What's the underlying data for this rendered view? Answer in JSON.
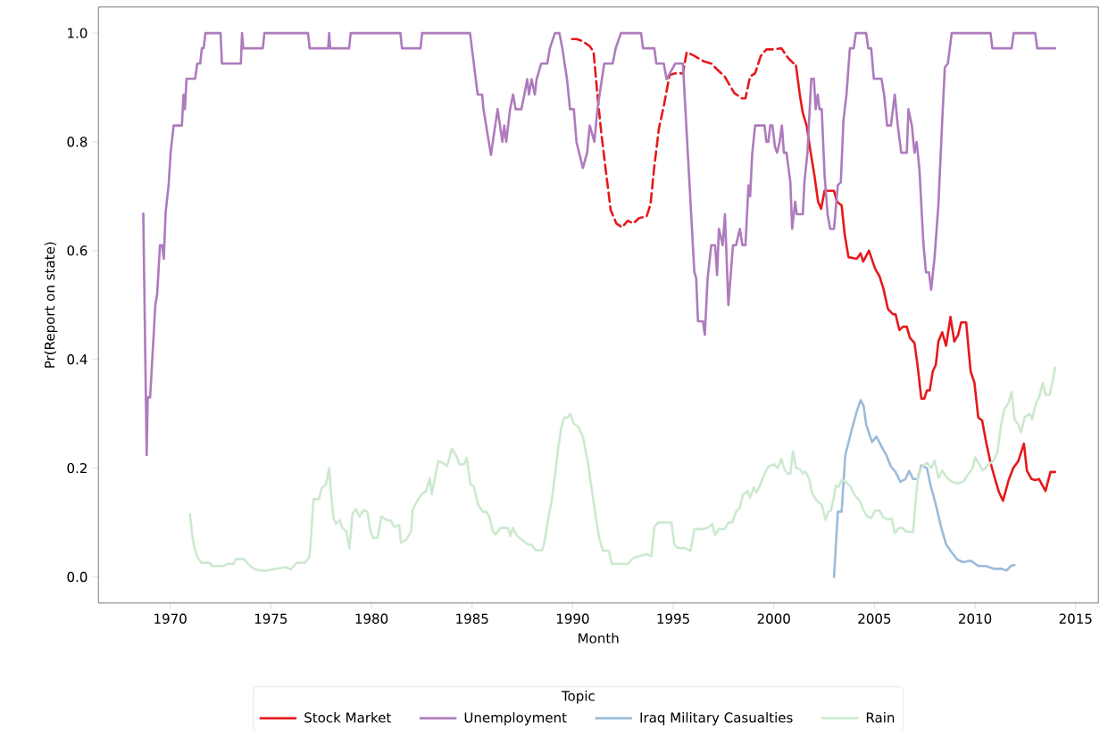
{
  "chart_data": {
    "type": "line",
    "xlabel": "Month",
    "ylabel": "Pr(Report on state)",
    "legend_title": "Topic",
    "legend": "bottom",
    "line_style": "solid",
    "xlim": [
      1966.43,
      2016.13
    ],
    "ylim": [
      -0.048,
      1.048
    ],
    "xticks": [
      1970,
      1975,
      1980,
      1985,
      1990,
      1995,
      2000,
      2005,
      2010,
      2015
    ],
    "yticks": [
      {
        "value": 0,
        "label": "0.0"
      },
      {
        "value": 0.2,
        "label": "0.2"
      },
      {
        "value": 0.4,
        "label": "0.4"
      },
      {
        "value": 0.6,
        "label": "0.6"
      },
      {
        "value": 0.8,
        "label": "0.8"
      },
      {
        "value": 1,
        "label": "1.0"
      }
    ],
    "series": [
      {
        "name": "Stock Market",
        "color": "#e41a1c",
        "x": [
          2001.1,
          2001.29,
          2001.44,
          2001.63,
          2001.82,
          2002.01,
          2002.2,
          2002.35,
          2002.52,
          2002.71,
          2002.99,
          2003.14,
          2003.37,
          2003.52,
          2003.71,
          2004.12,
          2004.31,
          2004.44,
          2004.73,
          2005.03,
          2005.25,
          2005.44,
          2005.67,
          2005.92,
          2006.05,
          2006.24,
          2006.42,
          2006.61,
          2006.76,
          2006.99,
          2007.14,
          2007.33,
          2007.48,
          2007.61,
          2007.75,
          2007.9,
          2008.05,
          2008.18,
          2008.37,
          2008.56,
          2008.78,
          2008.97,
          2009.16,
          2009.31,
          2009.56,
          2009.78,
          2009.97,
          2010.16,
          2010.35,
          2010.54,
          2010.77,
          2011.01,
          2011.2,
          2011.39,
          2011.67,
          2011.9,
          2012.15,
          2012.43,
          2012.58,
          2012.81,
          2012.99,
          2013.18,
          2013.5,
          2013.75,
          2013.98
        ],
        "values": [
          0.94,
          0.887,
          0.853,
          0.83,
          0.783,
          0.74,
          0.69,
          0.677,
          0.71,
          0.71,
          0.71,
          0.69,
          0.683,
          0.63,
          0.588,
          0.585,
          0.595,
          0.58,
          0.6,
          0.567,
          0.553,
          0.531,
          0.493,
          0.483,
          0.483,
          0.454,
          0.46,
          0.46,
          0.44,
          0.43,
          0.39,
          0.328,
          0.328,
          0.343,
          0.343,
          0.378,
          0.39,
          0.433,
          0.45,
          0.425,
          0.478,
          0.433,
          0.445,
          0.468,
          0.468,
          0.378,
          0.357,
          0.293,
          0.288,
          0.25,
          0.21,
          0.178,
          0.155,
          0.14,
          0.178,
          0.2,
          0.213,
          0.245,
          0.195,
          0.18,
          0.178,
          0.18,
          0.158,
          0.193,
          0.193
        ]
      },
      {
        "color": "#e41a1c",
        "line_style": "dashed",
        "x": [
          1989.97,
          1990.19,
          1990.5,
          1990.85,
          1991.04,
          1991.23,
          1991.42,
          1991.65,
          1991.89,
          1992.17,
          1992.46,
          1992.74,
          1993.02,
          1993.31,
          1993.68,
          1993.87,
          1994.06,
          1994.29,
          1994.53,
          1994.82,
          1995.1,
          1995.48,
          1995.67,
          1996.05,
          1996.52,
          1996.89,
          1997.27,
          1997.56,
          1998.03,
          1998.41,
          1998.59,
          1998.82,
          1999.07,
          1999.35,
          1999.63,
          1999.97,
          2000.38,
          2000.63,
          2000.82,
          2001.1
        ],
        "values": [
          0.989,
          0.989,
          0.985,
          0.976,
          0.966,
          0.887,
          0.818,
          0.747,
          0.675,
          0.65,
          0.643,
          0.655,
          0.65,
          0.66,
          0.663,
          0.685,
          0.755,
          0.825,
          0.866,
          0.923,
          0.926,
          0.926,
          0.965,
          0.958,
          0.948,
          0.944,
          0.93,
          0.92,
          0.89,
          0.88,
          0.88,
          0.92,
          0.926,
          0.958,
          0.97,
          0.97,
          0.972,
          0.958,
          0.95,
          0.94
        ]
      },
      {
        "name": "Unemployment",
        "color": "#ae7bbd",
        "x": [
          1968.66,
          1968.83,
          1968.88,
          1969.0,
          1969.26,
          1969.35,
          1969.49,
          1969.6,
          1969.68,
          1969.77,
          1969.92,
          1970.02,
          1970.17,
          1970.58,
          1970.66,
          1970.73,
          1970.81,
          1971.24,
          1971.34,
          1971.49,
          1971.57,
          1971.66,
          1971.75,
          1972.5,
          1972.57,
          1973.51,
          1973.57,
          1973.63,
          1974.6,
          1974.68,
          1976.85,
          1976.93,
          1977.85,
          1977.9,
          1977.95,
          1978.89,
          1978.97,
          1981.44,
          1981.52,
          1982.44,
          1982.52,
          1984.9,
          1985.28,
          1985.5,
          1985.57,
          1985.94,
          1986.27,
          1986.51,
          1986.6,
          1986.7,
          1986.89,
          1987.04,
          1987.17,
          1987.45,
          1987.6,
          1987.74,
          1987.83,
          1987.96,
          1988.12,
          1988.21,
          1988.44,
          1988.74,
          1988.87,
          1989.12,
          1989.34,
          1989.49,
          1989.72,
          1989.87,
          1990.06,
          1990.19,
          1990.51,
          1990.72,
          1990.85,
          1991.08,
          1991.23,
          1991.57,
          1991.99,
          1992.14,
          1992.4,
          1993.4,
          1993.5,
          1994.06,
          1994.16,
          1994.53,
          1994.67,
          1995.1,
          1995.48,
          1996.05,
          1996.14,
          1996.23,
          1996.48,
          1996.57,
          1996.71,
          1996.89,
          1997.08,
          1997.18,
          1997.27,
          1997.46,
          1997.57,
          1997.74,
          1997.97,
          1998.12,
          1998.31,
          1998.44,
          1998.59,
          1998.74,
          1998.82,
          1998.93,
          1999.07,
          1999.54,
          1999.63,
          1999.73,
          1999.82,
          1999.93,
          2000.06,
          2000.16,
          2000.29,
          2000.4,
          2000.5,
          2000.63,
          2000.82,
          2000.91,
          2001.06,
          2001.14,
          2001.44,
          2001.52,
          2001.67,
          2001.86,
          2001.99,
          2002.08,
          2002.18,
          2002.27,
          2002.38,
          2002.52,
          2002.67,
          2002.8,
          2002.99,
          2003.18,
          2003.33,
          2003.46,
          2003.61,
          2003.78,
          2003.97,
          2004.08,
          2004.59,
          2004.69,
          2004.84,
          2004.97,
          2005.35,
          2005.48,
          2005.63,
          2005.82,
          2006.01,
          2006.16,
          2006.33,
          2006.61,
          2006.69,
          2006.86,
          2006.99,
          2007.1,
          2007.24,
          2007.43,
          2007.56,
          2007.71,
          2007.82,
          2007.99,
          2008.18,
          2008.37,
          2008.5,
          2008.65,
          2008.84,
          2010.77,
          2010.86,
          2011.82,
          2011.92,
          2012.99,
          2013.09,
          2013.98
        ],
        "values": [
          0.668,
          0.224,
          0.33,
          0.33,
          0.5,
          0.52,
          0.61,
          0.61,
          0.585,
          0.67,
          0.72,
          0.78,
          0.83,
          0.83,
          0.887,
          0.86,
          0.916,
          0.916,
          0.944,
          0.944,
          0.972,
          0.972,
          1.0,
          1.0,
          0.944,
          0.944,
          1.0,
          0.972,
          0.972,
          1.0,
          1.0,
          0.972,
          0.972,
          1.0,
          0.972,
          0.972,
          1.0,
          1.0,
          0.972,
          0.972,
          1.0,
          1.0,
          0.887,
          0.887,
          0.86,
          0.776,
          0.86,
          0.8,
          0.83,
          0.8,
          0.86,
          0.887,
          0.86,
          0.86,
          0.887,
          0.915,
          0.887,
          0.915,
          0.887,
          0.915,
          0.944,
          0.944,
          0.972,
          1.0,
          1.0,
          0.972,
          0.915,
          0.86,
          0.86,
          0.8,
          0.752,
          0.78,
          0.83,
          0.8,
          0.86,
          0.944,
          0.944,
          0.972,
          1.0,
          1.0,
          0.972,
          0.972,
          0.944,
          0.944,
          0.915,
          0.944,
          0.944,
          0.56,
          0.55,
          0.47,
          0.47,
          0.445,
          0.55,
          0.61,
          0.61,
          0.555,
          0.64,
          0.61,
          0.667,
          0.5,
          0.61,
          0.61,
          0.64,
          0.61,
          0.61,
          0.72,
          0.7,
          0.78,
          0.83,
          0.83,
          0.8,
          0.8,
          0.83,
          0.83,
          0.79,
          0.78,
          0.8,
          0.83,
          0.78,
          0.78,
          0.726,
          0.64,
          0.69,
          0.667,
          0.667,
          0.726,
          0.78,
          0.916,
          0.916,
          0.86,
          0.887,
          0.86,
          0.86,
          0.74,
          0.667,
          0.64,
          0.64,
          0.72,
          0.726,
          0.84,
          0.887,
          0.972,
          0.972,
          1.0,
          1.0,
          0.972,
          0.972,
          0.916,
          0.916,
          0.887,
          0.83,
          0.83,
          0.887,
          0.83,
          0.78,
          0.78,
          0.86,
          0.83,
          0.78,
          0.8,
          0.747,
          0.615,
          0.56,
          0.56,
          0.528,
          0.588,
          0.685,
          0.84,
          0.937,
          0.944,
          1.0,
          1.0,
          0.972,
          0.972,
          1.0,
          1.0,
          0.972,
          0.972
        ]
      },
      {
        "name": "Iraq Military Casualties",
        "color": "#9bbcdb",
        "x": [
          2002.99,
          2003.18,
          2003.37,
          2003.55,
          2003.84,
          2004.12,
          2004.31,
          2004.46,
          2004.59,
          2004.88,
          2005.1,
          2005.35,
          2005.59,
          2005.82,
          2006.05,
          2006.29,
          2006.54,
          2006.73,
          2006.92,
          2007.14,
          2007.33,
          2007.61,
          2007.8,
          2008.05,
          2008.31,
          2008.56,
          2008.84,
          2009.12,
          2009.41,
          2009.78,
          2010.16,
          2010.54,
          2010.92,
          2011.3,
          2011.58,
          2011.77,
          2011.96
        ],
        "values": [
          0.0,
          0.12,
          0.12,
          0.224,
          0.266,
          0.304,
          0.325,
          0.315,
          0.28,
          0.248,
          0.258,
          0.24,
          0.224,
          0.203,
          0.193,
          0.175,
          0.18,
          0.195,
          0.18,
          0.18,
          0.205,
          0.2,
          0.167,
          0.133,
          0.092,
          0.06,
          0.045,
          0.032,
          0.027,
          0.03,
          0.02,
          0.02,
          0.015,
          0.015,
          0.012,
          0.02,
          0.022
        ]
      },
      {
        "name": "Rain",
        "color": "#cde9cf",
        "x": [
          1970.98,
          1971.09,
          1971.17,
          1971.33,
          1971.56,
          1971.95,
          1972.1,
          1972.41,
          1972.65,
          1972.83,
          1973.14,
          1973.27,
          1973.66,
          1973.89,
          1974.2,
          1974.67,
          1975.29,
          1975.75,
          1975.99,
          1976.3,
          1976.69,
          1976.92,
          1977.0,
          1977.12,
          1977.39,
          1977.54,
          1977.74,
          1977.9,
          1978.01,
          1978.12,
          1978.24,
          1978.43,
          1978.55,
          1978.74,
          1978.91,
          1979.05,
          1979.22,
          1979.41,
          1979.61,
          1979.8,
          1979.95,
          1980.07,
          1980.31,
          1980.49,
          1980.8,
          1980.96,
          1981.12,
          1981.38,
          1981.47,
          1981.74,
          1981.97,
          1982.05,
          1982.28,
          1982.51,
          1982.72,
          1982.9,
          1983.0,
          1983.18,
          1983.32,
          1983.53,
          1983.76,
          1984.0,
          1984.22,
          1984.38,
          1984.61,
          1984.74,
          1984.92,
          1985.08,
          1985.31,
          1985.54,
          1985.7,
          1985.86,
          1986.04,
          1986.17,
          1986.4,
          1986.55,
          1986.79,
          1986.91,
          1987.02,
          1987.25,
          1987.49,
          1987.8,
          1987.95,
          1988.16,
          1988.47,
          1988.58,
          1988.81,
          1988.96,
          1989.12,
          1989.27,
          1989.43,
          1989.58,
          1989.74,
          1989.89,
          1990.05,
          1990.28,
          1990.52,
          1990.76,
          1990.95,
          1991.14,
          1991.32,
          1991.51,
          1991.8,
          1991.95,
          1992.36,
          1992.74,
          1993.02,
          1993.31,
          1993.68,
          1993.91,
          1994.06,
          1994.25,
          1994.53,
          1994.91,
          1995.05,
          1995.23,
          1995.57,
          1995.86,
          1996.05,
          1996.52,
          1996.8,
          1996.93,
          1997.08,
          1997.27,
          1997.56,
          1997.74,
          1997.93,
          1998.12,
          1998.31,
          1998.46,
          1998.69,
          1998.82,
          1999.01,
          1999.12,
          1999.31,
          1999.54,
          1999.73,
          2000.01,
          2000.19,
          2000.38,
          2000.5,
          2000.68,
          2000.82,
          2000.95,
          2001.1,
          2001.29,
          2001.44,
          2001.57,
          2001.76,
          2001.89,
          2002.14,
          2002.38,
          2002.57,
          2002.71,
          2002.84,
          2002.99,
          2003.08,
          2003.21,
          2003.37,
          2003.55,
          2003.78,
          2004.03,
          2004.27,
          2004.46,
          2004.65,
          2004.84,
          2005.03,
          2005.25,
          2005.44,
          2005.67,
          2005.86,
          2006.01,
          2006.2,
          2006.39,
          2006.58,
          2006.76,
          2006.92,
          2007.05,
          2007.18,
          2007.43,
          2007.61,
          2007.84,
          2007.99,
          2008.18,
          2008.37,
          2008.61,
          2008.84,
          2009.12,
          2009.41,
          2009.69,
          2009.88,
          2010.01,
          2010.16,
          2010.39,
          2010.63,
          2010.92,
          2011.11,
          2011.26,
          2011.45,
          2011.67,
          2011.82,
          2011.96,
          2012.15,
          2012.28,
          2012.47,
          2012.71,
          2012.84,
          2013.03,
          2013.18,
          2013.37,
          2013.5,
          2013.71,
          2013.84,
          2013.98
        ],
        "values": [
          0.115,
          0.078,
          0.06,
          0.037,
          0.026,
          0.026,
          0.02,
          0.02,
          0.02,
          0.024,
          0.024,
          0.033,
          0.033,
          0.023,
          0.014,
          0.011,
          0.015,
          0.018,
          0.014,
          0.026,
          0.026,
          0.037,
          0.072,
          0.143,
          0.143,
          0.164,
          0.17,
          0.2,
          0.146,
          0.107,
          0.098,
          0.104,
          0.09,
          0.084,
          0.053,
          0.115,
          0.125,
          0.111,
          0.123,
          0.12,
          0.084,
          0.072,
          0.072,
          0.111,
          0.104,
          0.104,
          0.092,
          0.095,
          0.063,
          0.069,
          0.084,
          0.123,
          0.14,
          0.152,
          0.158,
          0.182,
          0.152,
          0.187,
          0.213,
          0.21,
          0.204,
          0.236,
          0.222,
          0.207,
          0.207,
          0.219,
          0.17,
          0.167,
          0.132,
          0.12,
          0.12,
          0.111,
          0.084,
          0.078,
          0.09,
          0.09,
          0.09,
          0.075,
          0.09,
          0.075,
          0.068,
          0.059,
          0.059,
          0.049,
          0.049,
          0.06,
          0.111,
          0.14,
          0.187,
          0.233,
          0.274,
          0.293,
          0.293,
          0.3,
          0.282,
          0.276,
          0.256,
          0.21,
          0.16,
          0.113,
          0.071,
          0.048,
          0.048,
          0.024,
          0.024,
          0.024,
          0.035,
          0.038,
          0.042,
          0.038,
          0.092,
          0.1,
          0.1,
          0.1,
          0.06,
          0.053,
          0.053,
          0.048,
          0.088,
          0.088,
          0.092,
          0.098,
          0.077,
          0.088,
          0.088,
          0.1,
          0.1,
          0.12,
          0.127,
          0.151,
          0.158,
          0.146,
          0.165,
          0.155,
          0.168,
          0.19,
          0.203,
          0.207,
          0.2,
          0.217,
          0.2,
          0.19,
          0.19,
          0.231,
          0.2,
          0.198,
          0.19,
          0.194,
          0.18,
          0.155,
          0.14,
          0.133,
          0.105,
          0.12,
          0.122,
          0.147,
          0.168,
          0.165,
          0.178,
          0.175,
          0.168,
          0.15,
          0.14,
          0.122,
          0.111,
          0.108,
          0.122,
          0.122,
          0.11,
          0.105,
          0.108,
          0.08,
          0.09,
          0.09,
          0.083,
          0.083,
          0.083,
          0.14,
          0.19,
          0.205,
          0.21,
          0.2,
          0.214,
          0.182,
          0.196,
          0.182,
          0.175,
          0.172,
          0.175,
          0.19,
          0.2,
          0.22,
          0.21,
          0.196,
          0.205,
          0.214,
          0.228,
          0.272,
          0.308,
          0.32,
          0.34,
          0.29,
          0.28,
          0.266,
          0.294,
          0.3,
          0.29,
          0.32,
          0.33,
          0.357,
          0.335,
          0.335,
          0.357,
          0.385
        ]
      }
    ]
  }
}
